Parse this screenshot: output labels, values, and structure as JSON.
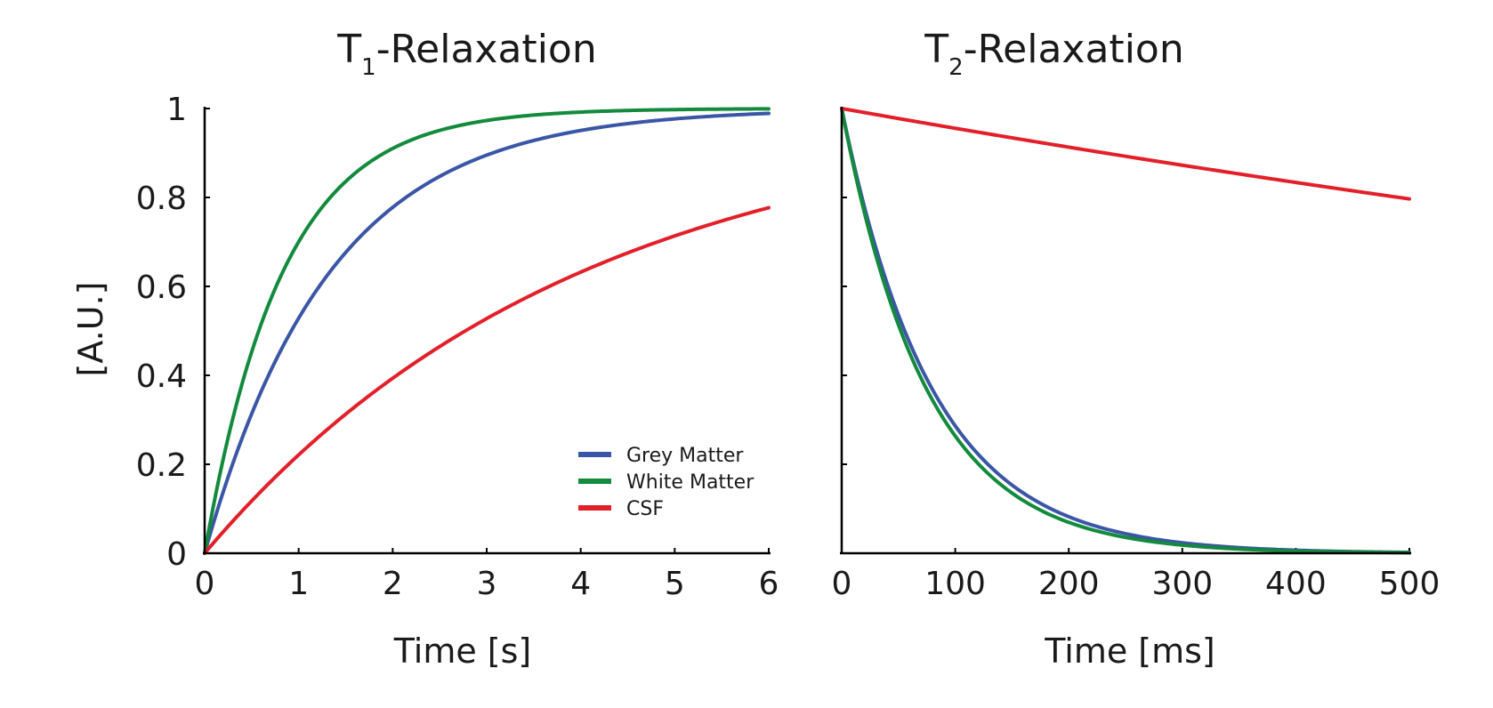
{
  "chart_data": [
    {
      "type": "line",
      "title": {
        "main": "T",
        "subscript": "1",
        "rest": "-Relaxation"
      },
      "xlabel": "Time [s]",
      "ylabel": "[A.U.]",
      "xlim": [
        0,
        6
      ],
      "ylim": [
        0,
        1
      ],
      "xticks": [
        0,
        1,
        2,
        3,
        4,
        5,
        6
      ],
      "xtick_labels": [
        "0",
        "1",
        "2",
        "3",
        "4",
        "5",
        "6"
      ],
      "yticks": [
        0,
        0.2,
        0.4,
        0.6,
        0.8,
        1
      ],
      "ytick_labels": [
        "0",
        "0.2",
        "0.4",
        "0.6",
        "0.8",
        "1"
      ],
      "grid": false,
      "legend_position": "lower-right",
      "model": "recovery",
      "series": [
        {
          "name": "Grey Matter",
          "color": "#3a56a6",
          "t_const": 1.33,
          "x": [
            0,
            0.5,
            1,
            1.5,
            2,
            2.5,
            3,
            3.5,
            4,
            4.5,
            5,
            5.5,
            6
          ],
          "values": [
            0,
            0.31,
            0.53,
            0.68,
            0.78,
            0.85,
            0.9,
            0.93,
            0.95,
            0.97,
            0.98,
            0.98,
            0.99
          ]
        },
        {
          "name": "White Matter",
          "color": "#138a3c",
          "t_const": 0.83,
          "x": [
            0,
            0.5,
            1,
            1.5,
            2,
            2.5,
            3,
            3.5,
            4,
            4.5,
            5,
            5.5,
            6
          ],
          "values": [
            0,
            0.45,
            0.7,
            0.84,
            0.91,
            0.95,
            0.97,
            0.99,
            0.99,
            1.0,
            1.0,
            1.0,
            1.0
          ]
        },
        {
          "name": "CSF",
          "color": "#e3202a",
          "t_const": 4.0,
          "x": [
            0,
            0.5,
            1,
            1.5,
            2,
            2.5,
            3,
            3.5,
            4,
            4.5,
            5,
            5.5,
            6
          ],
          "values": [
            0,
            0.12,
            0.22,
            0.31,
            0.39,
            0.46,
            0.53,
            0.58,
            0.63,
            0.68,
            0.71,
            0.75,
            0.78
          ]
        }
      ]
    },
    {
      "type": "line",
      "title": {
        "main": "T",
        "subscript": "2",
        "rest": "-Relaxation"
      },
      "xlabel": "Time [ms]",
      "ylabel": "",
      "xlim": [
        0,
        500
      ],
      "ylim": [
        0,
        1
      ],
      "xticks": [
        0,
        100,
        200,
        300,
        400,
        500
      ],
      "xtick_labels": [
        "0",
        "100",
        "200",
        "300",
        "400",
        "500"
      ],
      "yticks": [
        0,
        0.2,
        0.4,
        0.6,
        0.8,
        1
      ],
      "ytick_labels": [],
      "grid": false,
      "model": "decay",
      "series": [
        {
          "name": "Grey Matter",
          "color": "#3a56a6",
          "t_const": 80,
          "x": [
            0,
            50,
            100,
            150,
            200,
            250,
            300,
            350,
            400,
            450,
            500
          ],
          "values": [
            1,
            0.54,
            0.29,
            0.15,
            0.08,
            0.04,
            0.02,
            0.01,
            0.01,
            0.0,
            0.0
          ]
        },
        {
          "name": "White Matter",
          "color": "#138a3c",
          "t_const": 75,
          "x": [
            0,
            50,
            100,
            150,
            200,
            250,
            300,
            350,
            400,
            450,
            500
          ],
          "values": [
            1,
            0.51,
            0.26,
            0.14,
            0.07,
            0.04,
            0.02,
            0.01,
            0.0,
            0.0,
            0.0
          ]
        },
        {
          "name": "CSF",
          "color": "#e3202a",
          "t_const": 2200,
          "x": [
            0,
            50,
            100,
            150,
            200,
            250,
            300,
            350,
            400,
            450,
            500
          ],
          "values": [
            1,
            0.98,
            0.96,
            0.93,
            0.91,
            0.89,
            0.87,
            0.85,
            0.83,
            0.81,
            0.8
          ]
        }
      ]
    }
  ]
}
